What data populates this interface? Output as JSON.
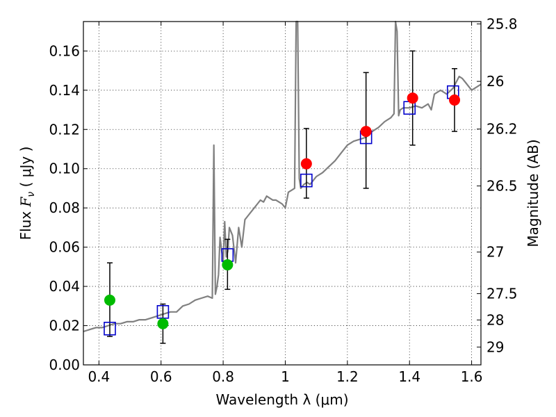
{
  "chart_data": {
    "type": "scatter",
    "xlabel": "Wavelength  λ (μm)",
    "ylabel": "Flux  F_ν ( μJy )",
    "ylabel_parts": {
      "prefix": "Flux  ",
      "symbol": "F",
      "subscript": "ν",
      "unit": " ( μJy )"
    },
    "y2label": "Magnitude (AB)",
    "xlim": [
      0.35,
      1.63
    ],
    "ylim": [
      0.0,
      0.175
    ],
    "grid": true,
    "legend": "none",
    "x_ticks": [
      {
        "value": 0.4,
        "label": "0.4"
      },
      {
        "value": 0.6,
        "label": "0.6"
      },
      {
        "value": 0.8,
        "label": "0.8"
      },
      {
        "value": 1.0,
        "label": "1"
      },
      {
        "value": 1.2,
        "label": "1.2"
      },
      {
        "value": 1.4,
        "label": "1.4"
      },
      {
        "value": 1.6,
        "label": "1.6"
      }
    ],
    "y_ticks": [
      {
        "value": 0.0,
        "label": "0.00"
      },
      {
        "value": 0.02,
        "label": "0.02"
      },
      {
        "value": 0.04,
        "label": "0.04"
      },
      {
        "value": 0.06,
        "label": "0.06"
      },
      {
        "value": 0.08,
        "label": "0.08"
      },
      {
        "value": 0.1,
        "label": "0.10"
      },
      {
        "value": 0.12,
        "label": "0.12"
      },
      {
        "value": 0.14,
        "label": "0.14"
      },
      {
        "value": 0.16,
        "label": "0.16"
      }
    ],
    "y2_ticks": [
      {
        "flux": 0.1738,
        "label": "25.8"
      },
      {
        "flux": 0.1445,
        "label": "26"
      },
      {
        "flux": 0.1202,
        "label": "26.2"
      },
      {
        "flux": 0.0912,
        "label": "26.5"
      },
      {
        "flux": 0.0575,
        "label": "27"
      },
      {
        "flux": 0.0363,
        "label": "27.5"
      },
      {
        "flux": 0.0229,
        "label": "28"
      },
      {
        "flux": 0.0091,
        "label": "29"
      }
    ],
    "series": [
      {
        "kind": "model_spectrum",
        "color": "#808080",
        "x": [
          0.35,
          0.37,
          0.39,
          0.41,
          0.43,
          0.45,
          0.47,
          0.49,
          0.51,
          0.53,
          0.55,
          0.57,
          0.59,
          0.61,
          0.63,
          0.65,
          0.67,
          0.69,
          0.71,
          0.73,
          0.75,
          0.765,
          0.77,
          0.775,
          0.78,
          0.785,
          0.79,
          0.8,
          0.805,
          0.81,
          0.815,
          0.82,
          0.83,
          0.84,
          0.85,
          0.86,
          0.87,
          0.88,
          0.89,
          0.9,
          0.91,
          0.92,
          0.93,
          0.94,
          0.95,
          0.96,
          0.97,
          0.98,
          0.99,
          1.0,
          1.01,
          1.02,
          1.03,
          1.035,
          1.04,
          1.045,
          1.05,
          1.06,
          1.07,
          1.08,
          1.1,
          1.12,
          1.14,
          1.16,
          1.18,
          1.2,
          1.22,
          1.24,
          1.26,
          1.28,
          1.3,
          1.32,
          1.34,
          1.35,
          1.355,
          1.36,
          1.365,
          1.37,
          1.38,
          1.4,
          1.42,
          1.44,
          1.46,
          1.47,
          1.48,
          1.5,
          1.52,
          1.54,
          1.56,
          1.57,
          1.58,
          1.6,
          1.62,
          1.63
        ],
        "y": [
          0.017,
          0.018,
          0.019,
          0.019,
          0.02,
          0.021,
          0.021,
          0.022,
          0.022,
          0.023,
          0.023,
          0.024,
          0.025,
          0.026,
          0.027,
          0.027,
          0.03,
          0.031,
          0.033,
          0.034,
          0.035,
          0.034,
          0.112,
          0.036,
          0.04,
          0.046,
          0.065,
          0.052,
          0.073,
          0.055,
          0.058,
          0.07,
          0.066,
          0.052,
          0.07,
          0.06,
          0.074,
          0.076,
          0.078,
          0.08,
          0.082,
          0.084,
          0.083,
          0.086,
          0.085,
          0.084,
          0.084,
          0.083,
          0.082,
          0.08,
          0.088,
          0.089,
          0.09,
          0.175,
          0.18,
          0.095,
          0.09,
          0.092,
          0.093,
          0.092,
          0.096,
          0.098,
          0.101,
          0.104,
          0.108,
          0.112,
          0.114,
          0.115,
          0.116,
          0.119,
          0.121,
          0.124,
          0.126,
          0.128,
          0.175,
          0.17,
          0.127,
          0.13,
          0.131,
          0.131,
          0.132,
          0.131,
          0.133,
          0.13,
          0.138,
          0.14,
          0.138,
          0.141,
          0.147,
          0.146,
          0.144,
          0.14,
          0.142,
          0.143
        ]
      },
      {
        "kind": "model_photometry",
        "marker": "open-square",
        "color": "#0000cc",
        "x": [
          0.435,
          0.606,
          0.814,
          1.068,
          1.26,
          1.4,
          1.54
        ],
        "y": [
          0.0185,
          0.027,
          0.056,
          0.094,
          0.116,
          0.131,
          0.139
        ]
      },
      {
        "kind": "observed_photometry",
        "marker": "filled-circle",
        "x": [
          0.435,
          0.606,
          0.814,
          1.068,
          1.26,
          1.41,
          1.545
        ],
        "y": [
          0.033,
          0.021,
          0.051,
          0.1025,
          0.119,
          0.136,
          0.135
        ],
        "yerr_low": [
          0.0185,
          0.01,
          0.0125,
          0.0175,
          0.029,
          0.024,
          0.016
        ],
        "yerr_high": [
          0.019,
          0.01,
          0.013,
          0.018,
          0.03,
          0.024,
          0.016
        ],
        "colors": [
          "#00bb00",
          "#00bb00",
          "#00bb00",
          "#ff0000",
          "#ff0000",
          "#ff0000",
          "#ff0000"
        ],
        "error_color": "#000000"
      }
    ]
  }
}
